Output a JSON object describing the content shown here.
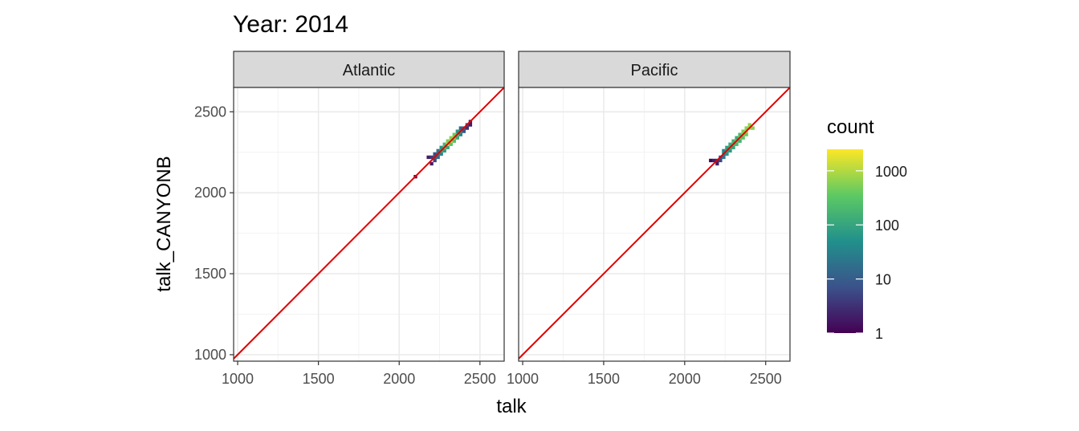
{
  "chart_data": {
    "type": "heatmap",
    "title": "Year: 2014",
    "xlabel": "talk",
    "ylabel": "talk_CANYONB",
    "xlim": [
      975,
      2650
    ],
    "ylim": [
      960,
      2650
    ],
    "x_ticks": [
      1000,
      1500,
      2000,
      2500
    ],
    "y_ticks": [
      1000,
      1500,
      2000,
      2500
    ],
    "reference_line": {
      "slope": 1,
      "intercept": 0,
      "color": "#e00000"
    },
    "grid": true,
    "legend": {
      "title": "count",
      "scale": "log10",
      "range": [
        1,
        2500
      ],
      "ticks": [
        1,
        10,
        100,
        1000
      ],
      "tick_labels": [
        "1",
        "10",
        "100",
        "1000"
      ],
      "placement": "right",
      "colors": [
        "#440154",
        "#3b528b",
        "#21908c",
        "#5dc963",
        "#fde725"
      ]
    },
    "bin_size": 20,
    "panels": [
      {
        "name": "Atlantic",
        "bins": [
          {
            "x": 2100,
            "y": 2100,
            "count": 1
          },
          {
            "x": 2180,
            "y": 2220,
            "count": 2
          },
          {
            "x": 2200,
            "y": 2180,
            "count": 2
          },
          {
            "x": 2200,
            "y": 2220,
            "count": 4
          },
          {
            "x": 2220,
            "y": 2200,
            "count": 5
          },
          {
            "x": 2220,
            "y": 2220,
            "count": 12
          },
          {
            "x": 2220,
            "y": 2240,
            "count": 6
          },
          {
            "x": 2240,
            "y": 2220,
            "count": 15
          },
          {
            "x": 2240,
            "y": 2240,
            "count": 30
          },
          {
            "x": 2240,
            "y": 2260,
            "count": 20
          },
          {
            "x": 2260,
            "y": 2240,
            "count": 40
          },
          {
            "x": 2260,
            "y": 2260,
            "count": 150
          },
          {
            "x": 2260,
            "y": 2280,
            "count": 60
          },
          {
            "x": 2280,
            "y": 2260,
            "count": 80
          },
          {
            "x": 2280,
            "y": 2280,
            "count": 400
          },
          {
            "x": 2280,
            "y": 2300,
            "count": 200
          },
          {
            "x": 2300,
            "y": 2280,
            "count": 100
          },
          {
            "x": 2300,
            "y": 2300,
            "count": 1500
          },
          {
            "x": 2300,
            "y": 2320,
            "count": 500
          },
          {
            "x": 2320,
            "y": 2300,
            "count": 300
          },
          {
            "x": 2320,
            "y": 2320,
            "count": 1200
          },
          {
            "x": 2320,
            "y": 2340,
            "count": 600
          },
          {
            "x": 2340,
            "y": 2320,
            "count": 250
          },
          {
            "x": 2340,
            "y": 2340,
            "count": 800
          },
          {
            "x": 2340,
            "y": 2360,
            "count": 400
          },
          {
            "x": 2360,
            "y": 2340,
            "count": 120
          },
          {
            "x": 2360,
            "y": 2360,
            "count": 300
          },
          {
            "x": 2360,
            "y": 2380,
            "count": 60
          },
          {
            "x": 2380,
            "y": 2360,
            "count": 40
          },
          {
            "x": 2380,
            "y": 2380,
            "count": 70
          },
          {
            "x": 2380,
            "y": 2400,
            "count": 12
          },
          {
            "x": 2400,
            "y": 2380,
            "count": 8
          },
          {
            "x": 2400,
            "y": 2400,
            "count": 15
          },
          {
            "x": 2420,
            "y": 2400,
            "count": 3
          },
          {
            "x": 2420,
            "y": 2420,
            "count": 6
          },
          {
            "x": 2440,
            "y": 2420,
            "count": 2
          },
          {
            "x": 2440,
            "y": 2440,
            "count": 2
          }
        ]
      },
      {
        "name": "Pacific",
        "bins": [
          {
            "x": 2160,
            "y": 2200,
            "count": 1
          },
          {
            "x": 2180,
            "y": 2200,
            "count": 2
          },
          {
            "x": 2200,
            "y": 2180,
            "count": 2
          },
          {
            "x": 2200,
            "y": 2200,
            "count": 3
          },
          {
            "x": 2220,
            "y": 2200,
            "count": 5
          },
          {
            "x": 2220,
            "y": 2220,
            "count": 8
          },
          {
            "x": 2240,
            "y": 2220,
            "count": 20
          },
          {
            "x": 2240,
            "y": 2240,
            "count": 30
          },
          {
            "x": 2240,
            "y": 2260,
            "count": 40
          },
          {
            "x": 2260,
            "y": 2240,
            "count": 60
          },
          {
            "x": 2260,
            "y": 2260,
            "count": 100
          },
          {
            "x": 2260,
            "y": 2280,
            "count": 80
          },
          {
            "x": 2280,
            "y": 2260,
            "count": 70
          },
          {
            "x": 2280,
            "y": 2280,
            "count": 150
          },
          {
            "x": 2280,
            "y": 2300,
            "count": 120
          },
          {
            "x": 2300,
            "y": 2280,
            "count": 100
          },
          {
            "x": 2300,
            "y": 2300,
            "count": 250
          },
          {
            "x": 2300,
            "y": 2320,
            "count": 150
          },
          {
            "x": 2320,
            "y": 2300,
            "count": 200
          },
          {
            "x": 2320,
            "y": 2320,
            "count": 400
          },
          {
            "x": 2320,
            "y": 2340,
            "count": 120
          },
          {
            "x": 2340,
            "y": 2320,
            "count": 150
          },
          {
            "x": 2340,
            "y": 2340,
            "count": 500
          },
          {
            "x": 2340,
            "y": 2360,
            "count": 200
          },
          {
            "x": 2360,
            "y": 2340,
            "count": 300
          },
          {
            "x": 2360,
            "y": 2360,
            "count": 700
          },
          {
            "x": 2360,
            "y": 2380,
            "count": 500
          },
          {
            "x": 2380,
            "y": 2360,
            "count": 400
          },
          {
            "x": 2380,
            "y": 2380,
            "count": 900
          },
          {
            "x": 2380,
            "y": 2400,
            "count": 600
          },
          {
            "x": 2400,
            "y": 2400,
            "count": 800
          },
          {
            "x": 2400,
            "y": 2420,
            "count": 700
          },
          {
            "x": 2420,
            "y": 2400,
            "count": 600
          }
        ]
      }
    ]
  }
}
